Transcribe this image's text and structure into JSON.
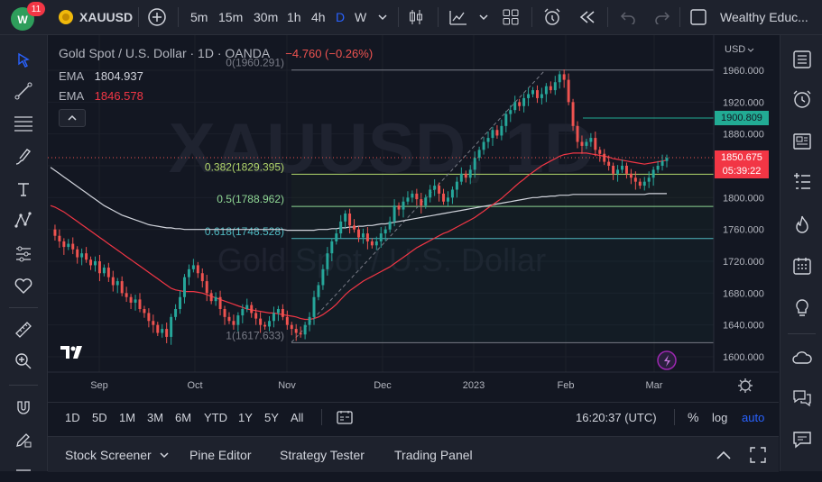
{
  "topbar": {
    "notif_count": "11",
    "symbol": "XAUUSD",
    "intervals": [
      "5m",
      "15m",
      "30m",
      "1h",
      "4h",
      "D",
      "W"
    ],
    "active_interval": "D",
    "layout_name": "Wealthy Educ..."
  },
  "legend": {
    "title": "Gold Spot / U.S. Dollar · 1D · OANDA",
    "change": "−4.760 (−0.26%)",
    "ema1_label": "EMA",
    "ema1_value": "1804.937",
    "ema2_label": "EMA",
    "ema2_value": "1846.578"
  },
  "watermark": {
    "symbol": "XAUUSD, 1D",
    "description": "Gold Spot / U.S. Dollar"
  },
  "fib": [
    {
      "label": "0(1960.291)",
      "price": 1960.291,
      "color": "#787b86"
    },
    {
      "label": "0.382(1829.395)",
      "price": 1829.395,
      "color": "#b2d76b"
    },
    {
      "label": "0.5(1788.962)",
      "price": 1788.962,
      "color": "#8fd694"
    },
    {
      "label": "0.618(1748.528)",
      "price": 1748.528,
      "color": "#4fb8c0"
    },
    {
      "label": "1(1617.633)",
      "price": 1617.633,
      "color": "#787b86"
    }
  ],
  "price_scale": {
    "currency": "USD",
    "ticks": [
      "1960.000",
      "1920.000",
      "1880.000",
      "1840.000",
      "1800.000",
      "1760.000",
      "1720.000",
      "1680.000",
      "1640.000",
      "1600.000"
    ],
    "alert_price": "1900.809",
    "last_price": "1850.675",
    "countdown": "05:39:22"
  },
  "time_scale": [
    "Sep",
    "Oct",
    "Nov",
    "Dec",
    "2023",
    "Feb",
    "Mar"
  ],
  "chart_data": {
    "type": "candlestick",
    "symbol": "XAUUSD",
    "interval": "1D",
    "ylim": [
      1600,
      1960
    ],
    "x_range": [
      "Aug 2022",
      "Mar 2023"
    ],
    "series": [
      {
        "name": "candles",
        "values": [
          1760,
          1752,
          1745,
          1738,
          1742,
          1735,
          1725,
          1730,
          1722,
          1715,
          1720,
          1705,
          1712,
          1700,
          1690,
          1695,
          1680,
          1675,
          1668,
          1672,
          1660,
          1655,
          1645,
          1640,
          1630,
          1635,
          1625,
          1650,
          1660,
          1675,
          1700,
          1710,
          1715,
          1705,
          1695,
          1680,
          1670,
          1675,
          1660,
          1650,
          1645,
          1640,
          1652,
          1660,
          1665,
          1655,
          1648,
          1640,
          1638,
          1645,
          1655,
          1660,
          1650,
          1640,
          1635,
          1630,
          1628,
          1640,
          1650,
          1675,
          1690,
          1710,
          1730,
          1745,
          1755,
          1770,
          1780,
          1765,
          1760,
          1750,
          1755,
          1745,
          1740,
          1745,
          1755,
          1760,
          1770,
          1790,
          1785,
          1795,
          1800,
          1805,
          1798,
          1790,
          1800,
          1810,
          1815,
          1805,
          1795,
          1800,
          1810,
          1820,
          1830,
          1825,
          1835,
          1850,
          1860,
          1870,
          1875,
          1885,
          1878,
          1890,
          1905,
          1910,
          1920,
          1915,
          1925,
          1930,
          1935,
          1925,
          1930,
          1940,
          1935,
          1945,
          1955,
          1948,
          1920,
          1890,
          1870,
          1865,
          1870,
          1875,
          1860,
          1855,
          1845,
          1840,
          1830,
          1835,
          1840,
          1830,
          1825,
          1820,
          1815,
          1820,
          1825,
          1835,
          1840,
          1846,
          1850
        ]
      },
      {
        "name": "EMA",
        "values": [
          1790,
          1788,
          1785,
          1782,
          1778,
          1774,
          1770,
          1766,
          1762,
          1758,
          1754,
          1750,
          1746,
          1742,
          1738,
          1734,
          1730,
          1726,
          1722,
          1718,
          1714,
          1710,
          1706,
          1702,
          1698,
          1694,
          1690,
          1686,
          1684,
          1683,
          1682,
          1682,
          1682,
          1681,
          1680,
          1678,
          1676,
          1674,
          1672,
          1670,
          1668,
          1666,
          1664,
          1662,
          1660,
          1659,
          1658,
          1657,
          1656,
          1655,
          1655,
          1654,
          1653,
          1652,
          1651,
          1650,
          1648,
          1647,
          1647,
          1648,
          1650,
          1653,
          1657,
          1661,
          1666,
          1672,
          1678,
          1683,
          1687,
          1691,
          1695,
          1698,
          1701,
          1704,
          1707,
          1710,
          1713,
          1717,
          1721,
          1725,
          1729,
          1733,
          1737,
          1740,
          1743,
          1746,
          1749,
          1752,
          1755,
          1757,
          1760,
          1763,
          1766,
          1769,
          1772,
          1775,
          1779,
          1783,
          1787,
          1791,
          1795,
          1799,
          1804,
          1809,
          1814,
          1819,
          1823,
          1828,
          1832,
          1836,
          1840,
          1843,
          1846,
          1849,
          1852,
          1854,
          1855,
          1856,
          1856,
          1856,
          1856,
          1855,
          1854,
          1853,
          1852,
          1851,
          1849,
          1848,
          1847,
          1846,
          1845,
          1844,
          1843,
          1842,
          1843,
          1844,
          1845,
          1846,
          1847
        ]
      },
      {
        "name": "EMA",
        "values": [
          1838,
          1834,
          1830,
          1826,
          1822,
          1818,
          1814,
          1810,
          1806,
          1802,
          1798,
          1794,
          1790,
          1787,
          1784,
          1781,
          1778,
          1776,
          1774,
          1772,
          1770,
          1768,
          1766,
          1765,
          1764,
          1763,
          1762,
          1762,
          1761,
          1761,
          1760,
          1760,
          1760,
          1760,
          1760,
          1760,
          1760,
          1760,
          1760,
          1760,
          1760,
          1760,
          1760,
          1760,
          1760,
          1760,
          1760,
          1760,
          1760,
          1760,
          1760,
          1760,
          1760,
          1759,
          1759,
          1759,
          1759,
          1759,
          1759,
          1759,
          1760,
          1760,
          1760,
          1761,
          1761,
          1762,
          1762,
          1763,
          1763,
          1764,
          1764,
          1765,
          1765,
          1766,
          1767,
          1767,
          1768,
          1769,
          1770,
          1771,
          1772,
          1773,
          1774,
          1775,
          1776,
          1777,
          1778,
          1779,
          1780,
          1781,
          1782,
          1783,
          1784,
          1785,
          1786,
          1787,
          1788,
          1789,
          1790,
          1791,
          1792,
          1793,
          1794,
          1795,
          1796,
          1797,
          1798,
          1799,
          1800,
          1800,
          1801,
          1801,
          1802,
          1802,
          1803,
          1803,
          1803,
          1804,
          1804,
          1804,
          1804,
          1804,
          1804,
          1804,
          1804,
          1804,
          1804,
          1804,
          1804,
          1804,
          1804,
          1804,
          1804,
          1804,
          1805,
          1805,
          1805,
          1805,
          1805
        ]
      }
    ]
  },
  "range_bar": {
    "ranges": [
      "1D",
      "5D",
      "1M",
      "3M",
      "6M",
      "YTD",
      "1Y",
      "5Y",
      "All"
    ],
    "time": "16:20:37 (UTC)",
    "percent": "%",
    "log": "log",
    "auto": "auto"
  },
  "bottom_bar": {
    "tabs": [
      "Stock Screener",
      "Pine Editor",
      "Strategy Tester",
      "Trading Panel"
    ]
  },
  "colors": {
    "bull": "#26a69a",
    "bear": "#ef5350",
    "ema_fast": "#f23645",
    "ema_slow": "#d1d4dc",
    "accent": "#2962ff",
    "alert": "#22ab94"
  }
}
